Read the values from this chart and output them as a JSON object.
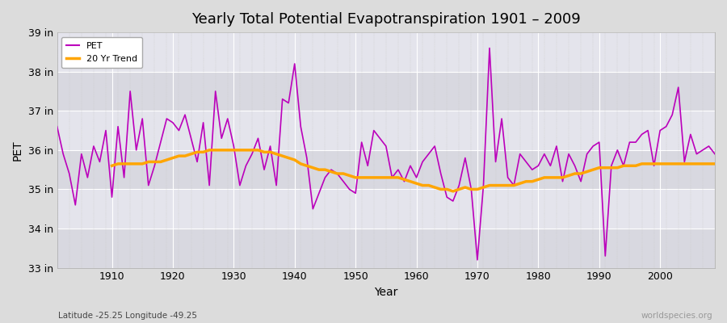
{
  "title": "Yearly Total Potential Evapotranspiration 1901 – 2009",
  "xlabel": "Year",
  "ylabel": "PET",
  "footnote_left": "Latitude -25.25 Longitude -49.25",
  "footnote_right": "worldspecies.org",
  "bg_color": "#dcdcdc",
  "plot_bg_color": "#e0e0e8",
  "pet_color": "#bb00bb",
  "trend_color": "#ffa500",
  "years": [
    1901,
    1902,
    1903,
    1904,
    1905,
    1906,
    1907,
    1908,
    1909,
    1910,
    1911,
    1912,
    1913,
    1914,
    1915,
    1916,
    1917,
    1918,
    1919,
    1920,
    1921,
    1922,
    1923,
    1924,
    1925,
    1926,
    1927,
    1928,
    1929,
    1930,
    1931,
    1932,
    1933,
    1934,
    1935,
    1936,
    1937,
    1938,
    1939,
    1940,
    1941,
    1942,
    1943,
    1944,
    1945,
    1946,
    1947,
    1948,
    1949,
    1950,
    1951,
    1952,
    1953,
    1954,
    1955,
    1956,
    1957,
    1958,
    1959,
    1960,
    1961,
    1962,
    1963,
    1964,
    1965,
    1966,
    1967,
    1968,
    1969,
    1970,
    1971,
    1972,
    1973,
    1974,
    1975,
    1976,
    1977,
    1978,
    1979,
    1980,
    1981,
    1982,
    1983,
    1984,
    1985,
    1986,
    1987,
    1988,
    1989,
    1990,
    1991,
    1992,
    1993,
    1994,
    1995,
    1996,
    1997,
    1998,
    1999,
    2000,
    2001,
    2002,
    2003,
    2004,
    2005,
    2006,
    2007,
    2008,
    2009
  ],
  "pet_values": [
    36.6,
    35.9,
    35.4,
    34.6,
    35.9,
    35.3,
    36.1,
    35.7,
    36.5,
    34.8,
    36.6,
    35.3,
    37.5,
    36.0,
    36.8,
    35.1,
    35.6,
    36.2,
    36.8,
    36.7,
    36.5,
    36.9,
    36.3,
    35.7,
    36.7,
    35.1,
    37.5,
    36.3,
    36.8,
    36.1,
    35.1,
    35.6,
    35.9,
    36.3,
    35.5,
    36.1,
    35.1,
    37.3,
    37.2,
    38.2,
    36.6,
    35.8,
    34.5,
    34.9,
    35.3,
    35.5,
    35.4,
    35.2,
    35.0,
    34.9,
    36.2,
    35.6,
    36.5,
    36.3,
    36.1,
    35.3,
    35.5,
    35.2,
    35.6,
    35.3,
    35.7,
    35.9,
    36.1,
    35.4,
    34.8,
    34.7,
    35.1,
    35.8,
    35.0,
    33.2,
    35.1,
    38.6,
    35.7,
    36.8,
    35.3,
    35.1,
    35.9,
    35.7,
    35.5,
    35.6,
    35.9,
    35.6,
    36.1,
    35.2,
    35.9,
    35.6,
    35.2,
    35.9,
    36.1,
    36.2,
    33.3,
    35.6,
    36.0,
    35.6,
    36.2,
    36.2,
    36.4,
    36.5,
    35.6,
    36.5,
    36.6,
    36.9,
    37.6,
    35.7,
    36.4,
    35.9,
    36.0,
    36.1,
    35.9
  ],
  "trend_years": [
    1910,
    1911,
    1912,
    1913,
    1914,
    1915,
    1916,
    1917,
    1918,
    1919,
    1920,
    1921,
    1922,
    1923,
    1924,
    1925,
    1926,
    1927,
    1928,
    1929,
    1930,
    1931,
    1932,
    1933,
    1934,
    1935,
    1936,
    1937,
    1938,
    1939,
    1940,
    1941,
    1942,
    1943,
    1944,
    1945,
    1946,
    1947,
    1948,
    1949,
    1950,
    1951,
    1952,
    1953,
    1954,
    1955,
    1956,
    1957,
    1958,
    1959,
    1960,
    1961,
    1962,
    1963,
    1964,
    1965,
    1966,
    1967,
    1968,
    1969,
    1970,
    1971,
    1972,
    1973,
    1974,
    1975,
    1976,
    1977,
    1978,
    1979,
    1980,
    1981,
    1982,
    1983,
    1984,
    1985,
    1986,
    1987,
    1988,
    1989,
    1990,
    1991,
    1992,
    1993,
    1994,
    1995,
    1996,
    1997,
    1998,
    1999,
    2000,
    2001,
    2002,
    2003,
    2004,
    2005,
    2006,
    2007,
    2008,
    2009
  ],
  "trend_values": [
    35.6,
    35.65,
    35.65,
    35.65,
    35.65,
    35.65,
    35.7,
    35.7,
    35.7,
    35.75,
    35.8,
    35.85,
    35.85,
    35.9,
    35.95,
    35.95,
    36.0,
    36.0,
    36.0,
    36.0,
    36.0,
    36.0,
    36.0,
    36.0,
    36.0,
    35.95,
    35.95,
    35.9,
    35.85,
    35.8,
    35.75,
    35.65,
    35.6,
    35.55,
    35.5,
    35.5,
    35.45,
    35.4,
    35.4,
    35.35,
    35.3,
    35.3,
    35.3,
    35.3,
    35.3,
    35.3,
    35.3,
    35.3,
    35.25,
    35.2,
    35.15,
    35.1,
    35.1,
    35.05,
    35.0,
    35.0,
    34.95,
    35.0,
    35.05,
    35.0,
    35.0,
    35.05,
    35.1,
    35.1,
    35.1,
    35.1,
    35.1,
    35.15,
    35.2,
    35.2,
    35.25,
    35.3,
    35.3,
    35.3,
    35.3,
    35.35,
    35.4,
    35.4,
    35.45,
    35.5,
    35.55,
    35.55,
    35.55,
    35.55,
    35.6,
    35.6,
    35.6,
    35.65,
    35.65,
    35.65,
    35.65,
    35.65,
    35.65,
    35.65,
    35.65,
    35.65,
    35.65,
    35.65,
    35.65,
    35.65
  ],
  "ylim": [
    33.0,
    39.0
  ],
  "yticks": [
    33,
    34,
    35,
    36,
    37,
    38,
    39
  ],
  "ytick_labels": [
    "33 in",
    "34 in",
    "35 in",
    "36 in",
    "37 in",
    "38 in",
    "39 in"
  ],
  "xlim": [
    1901,
    2009
  ],
  "xticks": [
    1910,
    1920,
    1930,
    1940,
    1950,
    1960,
    1970,
    1980,
    1990,
    2000
  ],
  "grid_major_color": "#ffffff",
  "grid_minor_color": "#cccccc",
  "stripe_colors": [
    "#d8d8e0",
    "#e4e4ec"
  ]
}
